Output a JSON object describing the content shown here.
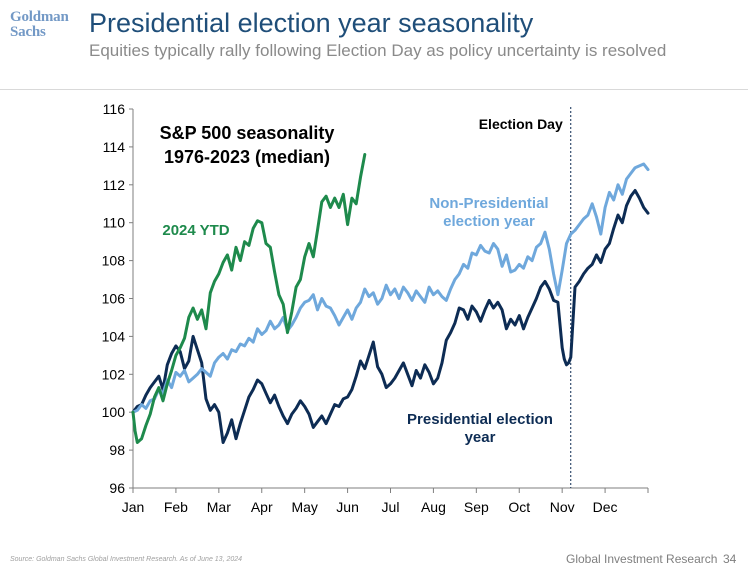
{
  "header": {
    "logo_text": "Goldman Sachs",
    "title": "Presidential election year seasonality",
    "subtitle": "Equities typically rally following Election Day as policy uncertainty is resolved"
  },
  "footer": {
    "source": "Source: Goldman Sachs Global Investment Research. As of June 13, 2024",
    "research": "Global Investment Research",
    "page": "34"
  },
  "colors": {
    "presidential": "#0d2c54",
    "non_presidential": "#6fa8dc",
    "ytd_2024": "#1e8a4c",
    "axis": "#7f7f7f",
    "text_dark": "#000000"
  },
  "chart_data": {
    "type": "line",
    "title": "S&P 500 seasonality 1976-2023 (median)",
    "title_lines": [
      "S&P 500 seasonality",
      "1976-2023 (median)"
    ],
    "xlabel": "",
    "ylabel": "",
    "x_domain_months": [
      0,
      12
    ],
    "ylim": [
      96,
      116
    ],
    "y_ticks": [
      96,
      98,
      100,
      102,
      104,
      106,
      108,
      110,
      112,
      114,
      116
    ],
    "x_ticks": [
      "Jan",
      "Feb",
      "Mar",
      "Apr",
      "May",
      "Jun",
      "Jul",
      "Aug",
      "Sep",
      "Oct",
      "Nov",
      "Dec"
    ],
    "grid": false,
    "series_labels": {
      "presidential": [
        "Presidential election",
        "year"
      ],
      "non_presidential": [
        "Non-Presidential",
        "election year"
      ],
      "ytd_2024": [
        "2024 YTD"
      ]
    },
    "annotations": [
      {
        "text": "Election Day",
        "x_month": 10.2
      }
    ],
    "series": [
      {
        "key": "presidential",
        "name": "Presidential election year",
        "x_month": [
          0,
          0.1,
          0.2,
          0.3,
          0.4,
          0.5,
          0.6,
          0.7,
          0.8,
          0.9,
          1.0,
          1.1,
          1.2,
          1.3,
          1.4,
          1.5,
          1.6,
          1.7,
          1.8,
          1.9,
          2.0,
          2.1,
          2.2,
          2.3,
          2.4,
          2.5,
          2.6,
          2.7,
          2.8,
          2.9,
          3.0,
          3.1,
          3.2,
          3.3,
          3.4,
          3.5,
          3.6,
          3.7,
          3.8,
          3.9,
          4.0,
          4.1,
          4.2,
          4.3,
          4.4,
          4.5,
          4.6,
          4.7,
          4.8,
          4.9,
          5.0,
          5.1,
          5.2,
          5.3,
          5.4,
          5.5,
          5.6,
          5.7,
          5.8,
          5.9,
          6.0,
          6.1,
          6.2,
          6.3,
          6.4,
          6.5,
          6.6,
          6.7,
          6.8,
          6.9,
          7.0,
          7.1,
          7.2,
          7.3,
          7.4,
          7.5,
          7.6,
          7.7,
          7.8,
          7.9,
          8.0,
          8.1,
          8.2,
          8.3,
          8.4,
          8.5,
          8.6,
          8.7,
          8.8,
          8.9,
          9.0,
          9.1,
          9.2,
          9.3,
          9.4,
          9.5,
          9.6,
          9.7,
          9.8,
          9.9,
          10.0,
          10.05,
          10.1,
          10.15,
          10.2,
          10.3,
          10.4,
          10.5,
          10.6,
          10.7,
          10.8,
          10.9,
          11.0,
          11.1,
          11.2,
          11.3,
          11.4,
          11.5,
          11.6,
          11.7,
          11.8,
          11.9,
          12.0
        ],
        "values": [
          100.0,
          100.3,
          100.4,
          100.9,
          101.3,
          101.6,
          101.9,
          101.2,
          102.5,
          103.1,
          103.5,
          103.2,
          102.3,
          102.7,
          104.0,
          103.3,
          102.6,
          100.7,
          100.1,
          100.4,
          100.0,
          98.4,
          98.9,
          99.6,
          98.6,
          99.4,
          100.1,
          100.8,
          101.2,
          101.7,
          101.5,
          101.0,
          100.5,
          100.9,
          100.3,
          99.8,
          99.4,
          99.9,
          100.2,
          100.6,
          100.3,
          99.9,
          99.2,
          99.5,
          99.8,
          99.4,
          99.9,
          100.4,
          100.3,
          100.7,
          100.8,
          101.2,
          101.9,
          102.7,
          102.3,
          103.0,
          103.7,
          102.4,
          102.0,
          101.3,
          101.5,
          101.8,
          102.2,
          102.6,
          102.0,
          101.4,
          102.2,
          101.8,
          102.5,
          102.1,
          101.5,
          101.8,
          102.6,
          103.8,
          104.2,
          104.7,
          105.5,
          105.4,
          104.9,
          105.6,
          105.3,
          104.8,
          105.4,
          105.9,
          105.5,
          105.8,
          105.4,
          104.4,
          104.9,
          104.6,
          105.1,
          104.4,
          105.0,
          105.5,
          106.0,
          106.6,
          106.9,
          106.5,
          105.9,
          105.8,
          103.4,
          102.8,
          102.5,
          102.6,
          102.9,
          106.6,
          106.9,
          107.3,
          107.6,
          107.8,
          108.3,
          107.9,
          108.6,
          108.9,
          109.7,
          110.4,
          110.0,
          110.9,
          111.4,
          111.7,
          111.3,
          110.8,
          110.5
        ]
      },
      {
        "key": "non_presidential",
        "name": "Non-Presidential election year",
        "x_month": [
          0,
          0.1,
          0.2,
          0.3,
          0.4,
          0.5,
          0.6,
          0.7,
          0.8,
          0.9,
          1.0,
          1.1,
          1.2,
          1.3,
          1.4,
          1.5,
          1.6,
          1.7,
          1.8,
          1.9,
          2.0,
          2.1,
          2.2,
          2.3,
          2.4,
          2.5,
          2.6,
          2.7,
          2.8,
          2.9,
          3.0,
          3.1,
          3.2,
          3.3,
          3.4,
          3.5,
          3.6,
          3.7,
          3.8,
          3.9,
          4.0,
          4.1,
          4.2,
          4.3,
          4.4,
          4.5,
          4.6,
          4.7,
          4.8,
          4.9,
          5.0,
          5.1,
          5.2,
          5.3,
          5.4,
          5.5,
          5.6,
          5.7,
          5.8,
          5.9,
          6.0,
          6.1,
          6.2,
          6.3,
          6.4,
          6.5,
          6.6,
          6.7,
          6.8,
          6.9,
          7.0,
          7.1,
          7.2,
          7.3,
          7.4,
          7.5,
          7.6,
          7.7,
          7.8,
          7.9,
          8.0,
          8.1,
          8.2,
          8.3,
          8.4,
          8.5,
          8.6,
          8.7,
          8.8,
          8.9,
          9.0,
          9.1,
          9.2,
          9.3,
          9.4,
          9.5,
          9.6,
          9.7,
          9.8,
          9.9,
          10.0,
          10.1,
          10.2,
          10.3,
          10.4,
          10.5,
          10.6,
          10.7,
          10.8,
          10.9,
          11.0,
          11.1,
          11.2,
          11.3,
          11.4,
          11.5,
          11.6,
          11.7,
          11.8,
          11.9,
          12.0
        ],
        "values": [
          100.0,
          100.1,
          100.4,
          100.2,
          100.6,
          100.7,
          101.2,
          101.0,
          101.7,
          101.3,
          102.1,
          101.9,
          102.2,
          101.6,
          101.8,
          102.0,
          102.3,
          102.1,
          101.9,
          102.6,
          102.9,
          103.1,
          102.8,
          103.3,
          103.2,
          103.6,
          103.5,
          103.9,
          103.7,
          104.4,
          104.1,
          104.3,
          104.8,
          104.4,
          104.6,
          105.0,
          104.3,
          104.6,
          105.0,
          105.5,
          105.8,
          105.9,
          106.2,
          105.4,
          106.0,
          105.6,
          105.5,
          105.1,
          104.6,
          105.0,
          105.4,
          104.9,
          105.5,
          105.8,
          106.5,
          106.1,
          106.3,
          105.7,
          106.0,
          106.7,
          106.2,
          106.5,
          106.0,
          106.6,
          106.3,
          105.9,
          106.4,
          106.1,
          105.8,
          106.6,
          106.2,
          106.4,
          106.1,
          105.9,
          106.5,
          107.0,
          107.3,
          107.8,
          107.6,
          108.4,
          108.3,
          108.8,
          108.5,
          108.4,
          108.9,
          108.6,
          107.7,
          108.3,
          107.4,
          107.5,
          107.8,
          107.6,
          108.2,
          108.0,
          108.7,
          108.9,
          109.5,
          108.6,
          107.3,
          106.2,
          107.5,
          108.9,
          109.4,
          109.6,
          109.9,
          110.2,
          110.4,
          111.0,
          110.3,
          109.4,
          110.8,
          111.6,
          111.2,
          112.0,
          111.5,
          112.3,
          112.6,
          112.9,
          113.0,
          113.1,
          112.8
        ]
      },
      {
        "key": "ytd_2024",
        "name": "2024 YTD",
        "x_month": [
          0,
          0.05,
          0.1,
          0.15,
          0.2,
          0.3,
          0.4,
          0.5,
          0.6,
          0.7,
          0.8,
          0.9,
          1.0,
          1.1,
          1.2,
          1.3,
          1.4,
          1.5,
          1.6,
          1.7,
          1.8,
          1.9,
          2.0,
          2.1,
          2.2,
          2.3,
          2.4,
          2.5,
          2.6,
          2.7,
          2.8,
          2.9,
          3.0,
          3.1,
          3.2,
          3.3,
          3.4,
          3.5,
          3.6,
          3.7,
          3.8,
          3.9,
          4.0,
          4.1,
          4.2,
          4.3,
          4.4,
          4.5,
          4.6,
          4.7,
          4.8,
          4.9,
          5.0,
          5.1,
          5.2,
          5.3,
          5.4
        ],
        "values": [
          100.0,
          99.0,
          98.4,
          98.5,
          98.6,
          99.3,
          99.9,
          100.8,
          101.3,
          100.6,
          101.5,
          102.2,
          103.0,
          103.4,
          103.9,
          105.0,
          105.5,
          104.9,
          105.4,
          104.4,
          106.3,
          106.9,
          107.3,
          107.9,
          108.3,
          107.5,
          108.7,
          108.0,
          109.0,
          108.8,
          109.7,
          110.1,
          110.0,
          108.9,
          108.7,
          107.4,
          106.2,
          105.7,
          104.2,
          105.3,
          106.6,
          107.0,
          108.2,
          108.9,
          108.2,
          109.6,
          111.1,
          111.4,
          110.8,
          111.3,
          110.8,
          111.5,
          109.9,
          111.3,
          111.0,
          112.4,
          113.6
        ]
      }
    ]
  }
}
